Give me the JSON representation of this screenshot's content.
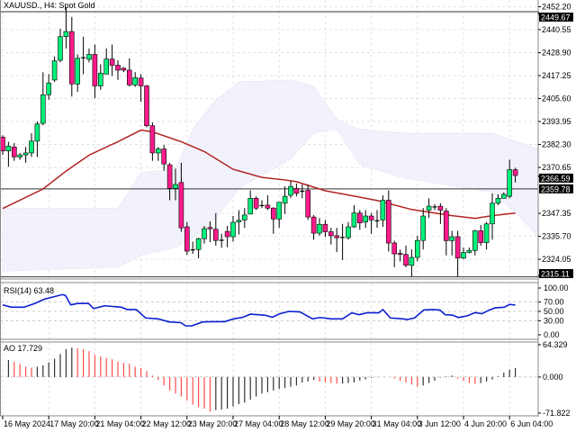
{
  "chart_data": {
    "type": "candlestick",
    "title": "XAUUSD., H4:  Spot Gold",
    "colors": {
      "bull": "#00f07a",
      "bear": "#ff1a8c",
      "outline": "#000000",
      "ma": "#b22222",
      "rsi": "#0a1fd0",
      "ao_up": "#333333",
      "ao_down": "#ff4d4d",
      "cloud": "#dcdcf4",
      "grid": "#d8d8d8"
    },
    "main": {
      "ylim": [
        2314.5,
        2455.6
      ],
      "y_ticks": [
        "2452.20",
        "2440.55",
        "2428.90",
        "2417.25",
        "2405.60",
        "2393.95",
        "2382.30",
        "2370.65",
        "2347.35",
        "2335.70",
        "2324.05"
      ],
      "level_lines": [
        {
          "value": 2449.67,
          "label": "2449.67"
        },
        {
          "value": 2359.78,
          "label": "2359.78"
        },
        {
          "value": 2315.11,
          "label": "2315.11"
        }
      ],
      "current_price": {
        "value": 2366.59,
        "label": "2366.59"
      },
      "candles_ohlc": [
        [
          2386,
          2387,
          2377,
          2379
        ],
        [
          2379,
          2383.7,
          2371,
          2381.5
        ],
        [
          2381,
          2383,
          2374,
          2376
        ],
        [
          2376,
          2378,
          2374.5,
          2377
        ],
        [
          2377,
          2381,
          2373,
          2378
        ],
        [
          2378,
          2388,
          2376,
          2384
        ],
        [
          2384,
          2394,
          2376,
          2392.7
        ],
        [
          2393,
          2418.9,
          2392,
          2407.5
        ],
        [
          2407.5,
          2418,
          2405,
          2413.5
        ],
        [
          2415,
          2427,
          2414,
          2424.7
        ],
        [
          2425,
          2441,
          2424,
          2437
        ],
        [
          2437,
          2452,
          2431,
          2439.6
        ],
        [
          2439.6,
          2447,
          2406.6,
          2413
        ],
        [
          2413,
          2428,
          2409,
          2426
        ],
        [
          2426,
          2437,
          2418,
          2426.3
        ],
        [
          2425.5,
          2431,
          2424,
          2428
        ],
        [
          2428,
          2433,
          2405.8,
          2412
        ],
        [
          2412,
          2423,
          2410,
          2418.5
        ],
        [
          2418,
          2431,
          2418,
          2425.6
        ],
        [
          2425.6,
          2433,
          2417,
          2422.5
        ],
        [
          2422.5,
          2425,
          2415,
          2420
        ],
        [
          2421,
          2421.5,
          2419,
          2420
        ],
        [
          2420,
          2426,
          2411.7,
          2412.5
        ],
        [
          2412.5,
          2419,
          2411.5,
          2416.2
        ],
        [
          2416,
          2418,
          2404,
          2412
        ],
        [
          2412,
          2412.5,
          2391,
          2391.8
        ],
        [
          2391.8,
          2393.5,
          2374,
          2378
        ],
        [
          2378,
          2381,
          2374,
          2380
        ],
        [
          2380,
          2382,
          2369,
          2372.4
        ],
        [
          2372,
          2373,
          2354,
          2360
        ],
        [
          2360,
          2370,
          2354,
          2362
        ],
        [
          2363,
          2373,
          2338,
          2340
        ],
        [
          2340.5,
          2343,
          2326.3,
          2328.2
        ],
        [
          2328.6,
          2333,
          2326.8,
          2328.8
        ],
        [
          2329,
          2335,
          2324.5,
          2334.5
        ],
        [
          2334.5,
          2341,
          2332,
          2339.6
        ],
        [
          2340.2,
          2343.2,
          2332.7,
          2339.5
        ],
        [
          2339.3,
          2347.5,
          2331,
          2333.6
        ],
        [
          2333.6,
          2337,
          2329.9,
          2333.7
        ],
        [
          2338.2,
          2341,
          2330.2,
          2335.5
        ],
        [
          2335.5,
          2346,
          2333,
          2342.8
        ],
        [
          2343,
          2349,
          2336.6,
          2343.8
        ],
        [
          2344,
          2350,
          2340,
          2346.5
        ],
        [
          2347,
          2359,
          2347,
          2355
        ],
        [
          2355,
          2356,
          2349,
          2350
        ],
        [
          2351,
          2354,
          2350,
          2351.3
        ],
        [
          2351.5,
          2356.5,
          2349,
          2350
        ],
        [
          2350,
          2350.5,
          2337,
          2344.5
        ],
        [
          2344.5,
          2353,
          2340,
          2353
        ],
        [
          2352.5,
          2361,
          2347,
          2356
        ],
        [
          2356.5,
          2364,
          2355,
          2361
        ],
        [
          2360,
          2362.5,
          2356,
          2357.5
        ],
        [
          2358.5,
          2362,
          2355,
          2358.6
        ],
        [
          2359,
          2362,
          2344,
          2345.5
        ],
        [
          2345.5,
          2346.5,
          2334,
          2337.3
        ],
        [
          2337.3,
          2345,
          2336,
          2341.8
        ],
        [
          2341.8,
          2344,
          2335.4,
          2338
        ],
        [
          2338,
          2340,
          2331.5,
          2336
        ],
        [
          2336,
          2340,
          2327.7,
          2335
        ],
        [
          2335,
          2342,
          2323.6,
          2335.1
        ],
        [
          2335,
          2343,
          2334,
          2340.5
        ],
        [
          2340.5,
          2351.5,
          2340,
          2347.5
        ],
        [
          2347.5,
          2349,
          2339,
          2342.5
        ],
        [
          2343,
          2349,
          2340,
          2346
        ],
        [
          2346,
          2347.5,
          2337,
          2344
        ],
        [
          2343.5,
          2349,
          2340,
          2343.6
        ],
        [
          2344,
          2356.5,
          2340.5,
          2354
        ],
        [
          2354,
          2359,
          2328,
          2332.3
        ],
        [
          2332.3,
          2333.5,
          2320,
          2326.8
        ],
        [
          2327,
          2329,
          2323,
          2326.5
        ],
        [
          2326.5,
          2331,
          2320,
          2321
        ],
        [
          2321,
          2329,
          2315.2,
          2325
        ],
        [
          2325,
          2336,
          2323,
          2333.6
        ],
        [
          2333.6,
          2350,
          2329,
          2346
        ],
        [
          2349,
          2355,
          2345,
          2351
        ],
        [
          2350.5,
          2352,
          2349,
          2350.6
        ],
        [
          2351,
          2352.5,
          2342,
          2349
        ],
        [
          2348.5,
          2350,
          2326,
          2333.5
        ],
        [
          2333.5,
          2338.5,
          2326,
          2335.5
        ],
        [
          2335.5,
          2338.5,
          2315.11,
          2324.7
        ],
        [
          2324.7,
          2330,
          2324,
          2327.5
        ],
        [
          2327.5,
          2330,
          2327,
          2328.5
        ],
        [
          2328.5,
          2339,
          2326,
          2338.5
        ],
        [
          2338.5,
          2341.4,
          2331,
          2332.5
        ],
        [
          2332.5,
          2343,
          2329,
          2342
        ],
        [
          2342,
          2357.5,
          2334,
          2352.5
        ],
        [
          2352.5,
          2357,
          2351.5,
          2355
        ],
        [
          2355,
          2358,
          2355,
          2357
        ],
        [
          2356,
          2374.6,
          2355,
          2369.5
        ],
        [
          2369.5,
          2370.5,
          2363,
          2366.59
        ]
      ],
      "moving_average": [
        [
          0,
          2349.8
        ],
        [
          7,
          2359.7
        ],
        [
          11,
          2368.8
        ],
        [
          15,
          2376.9
        ],
        [
          20,
          2383.7
        ],
        [
          24,
          2389.6
        ],
        [
          26,
          2388.7
        ],
        [
          31,
          2383.7
        ],
        [
          35,
          2378.7
        ],
        [
          40,
          2369.7
        ],
        [
          45,
          2365.6
        ],
        [
          49,
          2364.3
        ],
        [
          51,
          2363.4
        ],
        [
          56,
          2358.8
        ],
        [
          61,
          2356.1
        ],
        [
          65,
          2353.9
        ],
        [
          71,
          2349.3
        ],
        [
          78,
          2346.2
        ],
        [
          82,
          2344.8
        ],
        [
          85,
          2346.2
        ],
        [
          89,
          2347.5
        ]
      ],
      "cloud": [
        [
          0,
          2350,
          2318
        ],
        [
          20,
          2350,
          2320
        ],
        [
          24,
          2368,
          2326
        ],
        [
          30,
          2370,
          2330
        ],
        [
          33,
          2390,
          2335
        ],
        [
          37,
          2405,
          2345
        ],
        [
          41,
          2414,
          2360
        ],
        [
          50,
          2415,
          2375
        ],
        [
          54,
          2412,
          2388
        ],
        [
          58,
          2395,
          2390
        ],
        [
          62,
          2390,
          2372
        ],
        [
          70,
          2388,
          2365
        ],
        [
          85,
          2388,
          2358
        ],
        [
          90,
          2383,
          2345
        ],
        [
          93,
          2380,
          2335
        ]
      ]
    },
    "rsi": {
      "label": "RSI(14) 63.48",
      "ylim": [
        0,
        100
      ],
      "y_ticks": [
        "100.00",
        "70.00",
        "50.00",
        "30.00",
        "0.00"
      ],
      "levels": [
        70,
        50,
        30
      ],
      "values": [
        [
          0,
          64
        ],
        [
          1.5,
          59
        ],
        [
          3.7,
          59
        ],
        [
          5.6,
          67
        ],
        [
          7.2,
          76
        ],
        [
          8.8,
          81
        ],
        [
          10.4,
          86
        ],
        [
          10.9,
          84
        ],
        [
          11.8,
          64
        ],
        [
          13,
          67
        ],
        [
          14.9,
          67
        ],
        [
          15.8,
          56
        ],
        [
          17.7,
          62
        ],
        [
          20.6,
          59
        ],
        [
          21.6,
          54
        ],
        [
          23.2,
          54
        ],
        [
          24.8,
          36
        ],
        [
          27,
          34
        ],
        [
          28.9,
          27.5
        ],
        [
          30.9,
          26
        ],
        [
          31.8,
          19
        ],
        [
          32.8,
          19
        ],
        [
          34.7,
          27.5
        ],
        [
          36.3,
          28
        ],
        [
          38.5,
          28
        ],
        [
          40.1,
          34
        ],
        [
          41.7,
          37.5
        ],
        [
          43,
          44
        ],
        [
          45.5,
          42
        ],
        [
          46.8,
          37.5
        ],
        [
          48.1,
          45
        ],
        [
          49.7,
          50
        ],
        [
          51.6,
          49
        ],
        [
          53.8,
          34
        ],
        [
          55.1,
          37
        ],
        [
          57,
          34
        ],
        [
          59,
          34
        ],
        [
          60.6,
          47
        ],
        [
          61.9,
          43
        ],
        [
          63.2,
          47
        ],
        [
          65.3,
          47
        ],
        [
          66,
          54
        ],
        [
          67.3,
          36
        ],
        [
          69.5,
          34
        ],
        [
          70.2,
          32.5
        ],
        [
          71.5,
          36
        ],
        [
          73.1,
          53
        ],
        [
          74.6,
          54
        ],
        [
          75.9,
          53
        ],
        [
          76.8,
          43
        ],
        [
          78.1,
          42
        ],
        [
          79.1,
          37
        ],
        [
          80.7,
          40.6
        ],
        [
          82,
          47.5
        ],
        [
          83.2,
          45
        ],
        [
          84.5,
          53
        ],
        [
          85.5,
          57.5
        ],
        [
          87.1,
          59
        ],
        [
          88,
          65
        ],
        [
          89,
          63.48
        ]
      ]
    },
    "ao": {
      "label": "AO 17.729",
      "ylim": [
        -71.822,
        64.329
      ],
      "y_ticks": [
        "64.329",
        "0.000",
        "-71.822"
      ],
      "first_index": 1,
      "values": [
        33.9,
        30.4,
        26.3,
        20.5,
        18.7,
        20.5,
        23.4,
        29.2,
        36.3,
        45.6,
        55.6,
        58.5,
        57.3,
        55.6,
        51.5,
        43.9,
        40.9,
        38,
        35.1,
        30.4,
        28.1,
        26.3,
        20.5,
        17.5,
        11.7,
        2.9,
        -6,
        -16.8,
        -26.9,
        -32.9,
        -38.9,
        -46.7,
        -55.1,
        -59.9,
        -62.9,
        -68.9,
        -65.9,
        -64.7,
        -62.9,
        -58.7,
        -53.9,
        -50.9,
        -44.9,
        -38.9,
        -32.9,
        -29.9,
        -26.9,
        -24,
        -22.2,
        -19.2,
        -16.8,
        -10.8,
        -9,
        -6,
        -9,
        -10.8,
        -12,
        -13.2,
        -13.2,
        -12,
        -10.8,
        -7.2,
        -4.8,
        -1.8,
        -0.6,
        -0.2,
        -0.3,
        -3,
        -7.2,
        -10.8,
        -15,
        -19.2,
        -16.8,
        -12,
        -7.2,
        -1.2,
        1.2,
        2.9,
        -3,
        -7.2,
        -12,
        -13.8,
        -12,
        -9,
        -4.8,
        1.2,
        8.8,
        14.6,
        17.729
      ]
    },
    "x_ticks": [
      {
        "index": 0,
        "label": "16 May 2024"
      },
      {
        "index": 8,
        "label": "17 May 20:00"
      },
      {
        "index": 16,
        "label": "21 May 04:00"
      },
      {
        "index": 24,
        "label": "22 May 12:00"
      },
      {
        "index": 32,
        "label": "23 May 20:00"
      },
      {
        "index": 40,
        "label": "27 May 04:00"
      },
      {
        "index": 48,
        "label": "28 May 12:00"
      },
      {
        "index": 56,
        "label": "29 May 20:00"
      },
      {
        "index": 64,
        "label": "31 May 04:00"
      },
      {
        "index": 72,
        "label": "3 Jun 12:00"
      },
      {
        "index": 80,
        "label": "4 Jun 20:00"
      },
      {
        "index": 88,
        "label": "6 Jun 04:00"
      }
    ]
  }
}
